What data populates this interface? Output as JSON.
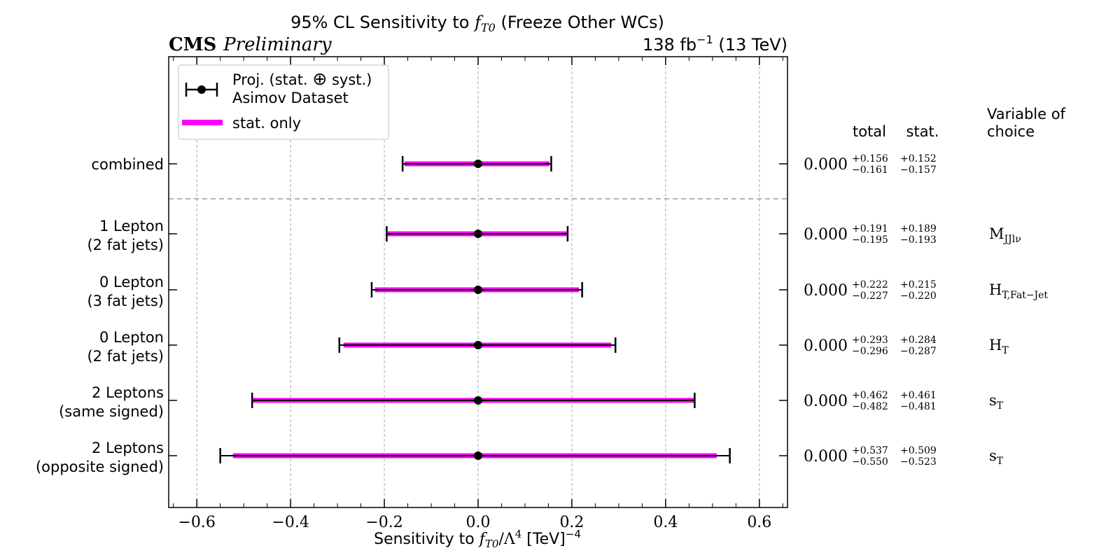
{
  "chart_data": {
    "type": "errorbar",
    "title_prefix": "95% CL Sensitivity to ",
    "title_param": "f",
    "title_param_sub": "T0",
    "title_suffix": " (Freeze Other WCs)",
    "experiment": "CMS",
    "status": "Preliminary",
    "lumi_prefix": "138 fb",
    "lumi_exp": "−1",
    "lumi_suffix": " (13 TeV)",
    "xlabel_prefix": "Sensitivity to ",
    "xlabel_f": "f",
    "xlabel_sub": "T0",
    "xlabel_lambda": "/Λ",
    "xlabel_lambda_exp": "4",
    "xlabel_unit": " [TeV]",
    "xlabel_unit_exp": "−4",
    "xlim": [
      -0.66,
      0.66
    ],
    "xticks": [
      -0.6,
      -0.4,
      -0.2,
      0.0,
      0.2,
      0.4,
      0.6
    ],
    "xtick_labels": [
      "−0.6",
      "−0.4",
      "−0.2",
      "0.0",
      "0.2",
      "0.4",
      "0.6"
    ],
    "grid": "vertical dashed",
    "colors": {
      "total": "#000000",
      "stat": "#ff00ff",
      "separator": "#999999"
    },
    "legend": {
      "placement": "top-left",
      "entries": [
        {
          "line1_a": "Proj. (stat. ",
          "line1_symbol": "⊕",
          "line1_b": " syst.)",
          "line2": "Asimov Dataset"
        },
        {
          "label": "stat. only"
        }
      ]
    },
    "table_headers": {
      "total": "total",
      "stat": "stat.",
      "variable": "Variable of choice"
    },
    "categories": [
      {
        "label": [
          "combined"
        ],
        "central": 0.0,
        "central_text": "0.000",
        "total_up": 0.156,
        "total_down": 0.161,
        "stat_up": 0.152,
        "stat_down": 0.157,
        "total_up_text": "+0.156",
        "total_down_text": "−0.161",
        "stat_up_text": "+0.152",
        "stat_down_text": "−0.157",
        "variable": "",
        "variable_sub": ""
      },
      {
        "label": [
          "1 Lepton",
          "(2 fat jets)"
        ],
        "central": 0.0,
        "central_text": "0.000",
        "total_up": 0.191,
        "total_down": 0.195,
        "stat_up": 0.189,
        "stat_down": 0.193,
        "total_up_text": "+0.191",
        "total_down_text": "−0.195",
        "stat_up_text": "+0.189",
        "stat_down_text": "−0.193",
        "variable": "M",
        "variable_sub": "JJlν"
      },
      {
        "label": [
          "0 Lepton",
          "(3 fat jets)"
        ],
        "central": 0.0,
        "central_text": "0.000",
        "total_up": 0.222,
        "total_down": 0.227,
        "stat_up": 0.215,
        "stat_down": 0.22,
        "total_up_text": "+0.222",
        "total_down_text": "−0.227",
        "stat_up_text": "+0.215",
        "stat_down_text": "−0.220",
        "variable": "H",
        "variable_sub": "T,Fat−Jet"
      },
      {
        "label": [
          "0 Lepton",
          "(2 fat jets)"
        ],
        "central": 0.0,
        "central_text": "0.000",
        "total_up": 0.293,
        "total_down": 0.296,
        "stat_up": 0.284,
        "stat_down": 0.287,
        "total_up_text": "+0.293",
        "total_down_text": "−0.296",
        "stat_up_text": "+0.284",
        "stat_down_text": "−0.287",
        "variable": "H",
        "variable_sub": "T"
      },
      {
        "label": [
          "2 Leptons",
          "(same signed)"
        ],
        "central": 0.0,
        "central_text": "0.000",
        "total_up": 0.462,
        "total_down": 0.482,
        "stat_up": 0.461,
        "stat_down": 0.481,
        "total_up_text": "+0.462",
        "total_down_text": "−0.482",
        "stat_up_text": "+0.461",
        "stat_down_text": "−0.481",
        "variable": "s",
        "variable_sub": "T"
      },
      {
        "label": [
          "2 Leptons",
          "(opposite signed)"
        ],
        "central": 0.0,
        "central_text": "0.000",
        "total_up": 0.537,
        "total_down": 0.55,
        "stat_up": 0.509,
        "stat_down": 0.523,
        "total_up_text": "+0.537",
        "total_down_text": "−0.550",
        "stat_up_text": "+0.509",
        "stat_down_text": "−0.523",
        "variable": "s",
        "variable_sub": "T"
      }
    ]
  }
}
